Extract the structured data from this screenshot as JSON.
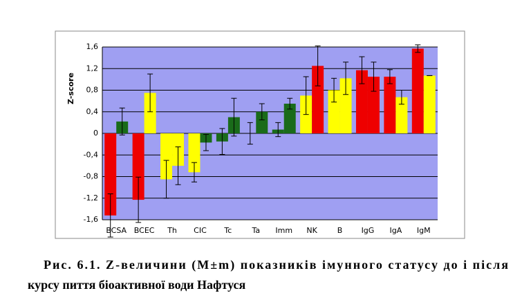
{
  "chart_data": {
    "type": "bar",
    "y_label": "Z-score",
    "caption_lines": [
      "Рис. 6.1. Z-величини (M±m) показників імунного статусу до і після",
      "курсу пиття біоактивної води Нафтуся"
    ],
    "categories": [
      "BCSA",
      "BCEC",
      "Th",
      "CIC",
      "Tc",
      "Ta",
      "Imm",
      "NK",
      "B",
      "IgG",
      "IgA",
      "IgM"
    ],
    "series": [
      {
        "values": [
          -1.52,
          -1.23,
          -0.85,
          -0.72,
          -0.15,
          0,
          0.07,
          0.7,
          0.8,
          1.17,
          1.05,
          1.57
        ],
        "errors": [
          0.4,
          0.42,
          0.35,
          0.18,
          0.24,
          0.2,
          0.13,
          0.35,
          0.22,
          0.25,
          0.13,
          0.07
        ],
        "colors": [
          "#ee0000",
          "#ee0000",
          "#ffff00",
          "#ffff00",
          "#1a6b1a",
          "#1a6b1a",
          "#1a6b1a",
          "#ffff00",
          "#ffff00",
          "#ee0000",
          "#ee0000",
          "#ee0000"
        ]
      },
      {
        "values": [
          0.22,
          0.75,
          -0.6,
          -0.17,
          0.3,
          0.4,
          0.55,
          1.25,
          1.02,
          1.05,
          0.67,
          1.07
        ],
        "errors": [
          0.25,
          0.35,
          0.35,
          0.15,
          0.35,
          0.15,
          0.1,
          0.37,
          0.3,
          0.27,
          0.13,
          0
        ],
        "colors": [
          "#1a6b1a",
          "#ffff00",
          "#ffff00",
          "#1a6b1a",
          "#1a6b1a",
          "#1a6b1a",
          "#1a6b1a",
          "#ee0000",
          "#ffff00",
          "#ee0000",
          "#ffff00",
          "#ffff00"
        ]
      }
    ],
    "ylim": [
      -1.6,
      1.6
    ],
    "yticks": [
      {
        "value": -1.6,
        "label": "-1,6"
      },
      {
        "value": -1.2,
        "label": "-1,2"
      },
      {
        "value": -0.8,
        "label": "-0,8"
      },
      {
        "value": -0.4,
        "label": "-0,4"
      },
      0,
      {
        "value": 0.4,
        "label": "0,4"
      },
      {
        "value": 0.8,
        "label": "0,8"
      },
      {
        "value": 1.2,
        "label": "1,2"
      },
      {
        "value": 1.6,
        "label": "1,6"
      }
    ],
    "grid": true,
    "plot_color": "#9f9ff2"
  }
}
